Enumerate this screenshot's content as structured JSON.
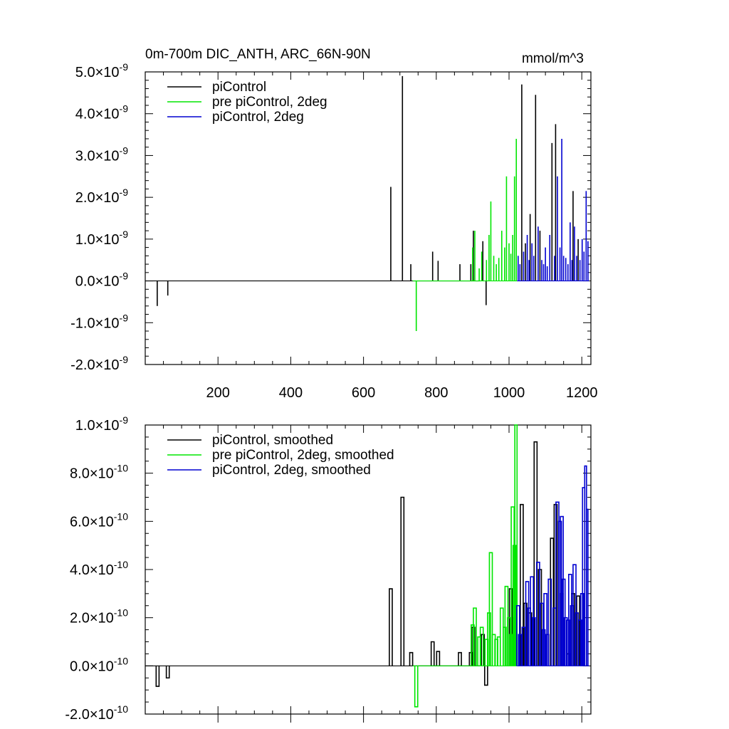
{
  "chart_data": [
    {
      "type": "line",
      "title": "0m-700m DIC_ANTH, ARC_66N-90N",
      "units": "mmol/m^3",
      "xlabel": "",
      "ylabel": "",
      "xlim": [
        0,
        1225
      ],
      "ylim": [
        -2e-09,
        5e-09
      ],
      "x_ticks": [
        200,
        400,
        600,
        800,
        1000,
        1200
      ],
      "x_tick_labels": [
        "200",
        "400",
        "600",
        "800",
        "1000",
        "1200"
      ],
      "y_ticks": [
        -2e-09,
        -1e-09,
        0.0,
        1e-09,
        2e-09,
        3e-09,
        4e-09,
        5e-09
      ],
      "y_tick_labels": [
        {
          "mantissa": "-2.0",
          "times": "×10",
          "exp": "-9"
        },
        {
          "mantissa": "-1.0",
          "times": "×10",
          "exp": "-9"
        },
        {
          "mantissa": "0.0",
          "times": "×10",
          "exp": "-9"
        },
        {
          "mantissa": "1.0",
          "times": "×10",
          "exp": "-9"
        },
        {
          "mantissa": "2.0",
          "times": "×10",
          "exp": "-9"
        },
        {
          "mantissa": "3.0",
          "times": "×10",
          "exp": "-9"
        },
        {
          "mantissa": "4.0",
          "times": "×10",
          "exp": "-9"
        },
        {
          "mantissa": "5.0",
          "times": "×10",
          "exp": "-9"
        }
      ],
      "grid": false,
      "legend_position": "top-left",
      "series": [
        {
          "name": "piControl",
          "color": "#000000",
          "spikes": [
            [
              33,
              -6e-10
            ],
            [
              62,
              -3.5e-10
            ],
            [
              675,
              2.25e-09
            ],
            [
              707,
              4.9e-09
            ],
            [
              730,
              4e-10
            ],
            [
              790,
              7e-10
            ],
            [
              805,
              4.8e-10
            ],
            [
              865,
              4e-10
            ],
            [
              895,
              4e-10
            ],
            [
              902,
              1.2e-09
            ],
            [
              928,
              9.5e-10
            ],
            [
              937,
              -5.8e-10
            ],
            [
              1035,
              4.7e-09
            ],
            [
              1045,
              9e-10
            ],
            [
              1058,
              1.6e-09
            ],
            [
              1073,
              4.45e-09
            ],
            [
              1085,
              1.2e-09
            ],
            [
              1118,
              3.3e-09
            ],
            [
              1128,
              3.75e-09
            ],
            [
              1176,
              2.15e-09
            ],
            [
              1190,
              1e-09
            ]
          ]
        },
        {
          "name": "pre piControl, 2deg",
          "color": "#00e600",
          "spikes": [
            [
              745,
              -1.2e-09
            ],
            [
              900,
              8e-10
            ],
            [
              906,
              1.2e-09
            ],
            [
              918,
              3e-10
            ],
            [
              925,
              7e-10
            ],
            [
              938,
              5e-10
            ],
            [
              945,
              1.1e-09
            ],
            [
              950,
              1.9e-09
            ],
            [
              958,
              6e-10
            ],
            [
              965,
              4e-10
            ],
            [
              972,
              5.5e-10
            ],
            [
              980,
              1.2e-09
            ],
            [
              988,
              8e-10
            ],
            [
              993,
              2.5e-09
            ],
            [
              1000,
              9e-10
            ],
            [
              1005,
              6.5e-10
            ],
            [
              1010,
              1.1e-09
            ],
            [
              1015,
              2.5e-09
            ],
            [
              1020,
              3.4e-09
            ]
          ]
        },
        {
          "name": "piControl, 2deg",
          "color": "#0000d0",
          "spikes": [
            [
              1025,
              6e-10
            ],
            [
              1030,
              4e-10
            ],
            [
              1040,
              7e-10
            ],
            [
              1050,
              1.1e-09
            ],
            [
              1055,
              5e-10
            ],
            [
              1063,
              9e-10
            ],
            [
              1068,
              6e-10
            ],
            [
              1080,
              1.3e-09
            ],
            [
              1090,
              5e-10
            ],
            [
              1095,
              4e-10
            ],
            [
              1100,
              8e-10
            ],
            [
              1105,
              3.5e-10
            ],
            [
              1112,
              1.1e-09
            ],
            [
              1125,
              6e-10
            ],
            [
              1133,
              2.5e-09
            ],
            [
              1140,
              8e-10
            ],
            [
              1145,
              3.4e-09
            ],
            [
              1150,
              6e-10
            ],
            [
              1156,
              5.5e-10
            ],
            [
              1162,
              4e-10
            ],
            [
              1168,
              1.4e-09
            ],
            [
              1173,
              5e-10
            ],
            [
              1180,
              1.3e-09
            ],
            [
              1186,
              6e-10
            ],
            [
              1195,
              5e-10
            ],
            [
              1201,
              1e-09
            ],
            [
              1206,
              7e-10
            ],
            [
              1212,
              2.15e-09
            ],
            [
              1217,
              9.5e-10
            ]
          ]
        }
      ]
    },
    {
      "type": "line",
      "title": "",
      "xlabel": "",
      "ylabel": "",
      "xlim": [
        0,
        1225
      ],
      "ylim": [
        -2e-10,
        1e-09
      ],
      "x_ticks": [
        200,
        400,
        600,
        800,
        1000,
        1200
      ],
      "x_tick_labels": [],
      "y_ticks": [
        -2e-10,
        0.0,
        2e-10,
        4e-10,
        6e-10,
        8e-10,
        1e-09
      ],
      "y_tick_labels": [
        {
          "mantissa": "-2.0",
          "times": "×10",
          "exp": "-10"
        },
        {
          "mantissa": "0.0",
          "times": "×10",
          "exp": "-10"
        },
        {
          "mantissa": "2.0",
          "times": "×10",
          "exp": "-10"
        },
        {
          "mantissa": "4.0",
          "times": "×10",
          "exp": "-10"
        },
        {
          "mantissa": "6.0",
          "times": "×10",
          "exp": "-10"
        },
        {
          "mantissa": "8.0",
          "times": "×10",
          "exp": "-10"
        },
        {
          "mantissa": "1.0",
          "times": "×10",
          "exp": "-9"
        }
      ],
      "grid": false,
      "legend_position": "top-left",
      "series": [
        {
          "name": "piControl, smoothed",
          "color": "#000000",
          "blocks": [
            [
              30,
              38,
              -8.5e-11
            ],
            [
              58,
              66,
              -5e-11
            ],
            [
              671,
              679,
              3.2e-10
            ],
            [
              703,
              711,
              7e-10
            ],
            [
              727,
              735,
              5.5e-11
            ],
            [
              786,
              794,
              1e-10
            ],
            [
              801,
              809,
              6e-11
            ],
            [
              861,
              869,
              5.5e-11
            ],
            [
              891,
              899,
              5.5e-11
            ],
            [
              898,
              906,
              1.6e-10
            ],
            [
              924,
              932,
              1.3e-10
            ],
            [
              933,
              941,
              -8e-11
            ],
            [
              1001,
              1009,
              3.2e-10
            ],
            [
              1011,
              1019,
              2e-10
            ],
            [
              1031,
              1039,
              6.7e-10
            ],
            [
              1041,
              1049,
              2.6e-10
            ],
            [
              1054,
              1062,
              2.2e-10
            ],
            [
              1069,
              1077,
              9.3e-10
            ],
            [
              1081,
              1089,
              4e-10
            ],
            [
              1114,
              1122,
              5.3e-10
            ],
            [
              1124,
              1132,
              6.7e-10
            ],
            [
              1141,
              1149,
              3e-10
            ],
            [
              1160,
              1168,
              5e-11
            ],
            [
              1172,
              1180,
              3e-10
            ],
            [
              1186,
              1194,
              2.9e-10
            ]
          ]
        },
        {
          "name": "pre piControl, 2deg, smoothed",
          "color": "#00e600",
          "blocks": [
            [
              741,
              749,
              -1.7e-10
            ],
            [
              896,
              904,
              1.7e-10
            ],
            [
              902,
              910,
              2.4e-10
            ],
            [
              914,
              922,
              1.2e-10
            ],
            [
              921,
              929,
              1.6e-10
            ],
            [
              934,
              942,
              1.1e-10
            ],
            [
              941,
              949,
              2.2e-10
            ],
            [
              946,
              954,
              4.7e-10
            ],
            [
              954,
              962,
              1.3e-10
            ],
            [
              961,
              969,
              1.1e-10
            ],
            [
              968,
              976,
              1.2e-10
            ],
            [
              976,
              984,
              2.4e-10
            ],
            [
              984,
              992,
              1.6e-10
            ],
            [
              989,
              997,
              3.3e-10
            ],
            [
              996,
              1004,
              2e-10
            ],
            [
              1001,
              1009,
              1.3e-10
            ],
            [
              1006,
              1014,
              6.6e-10
            ],
            [
              1011,
              1019,
              5e-10
            ],
            [
              1016,
              1022,
              1e-09
            ]
          ]
        },
        {
          "name": "piControl, 2deg, smoothed",
          "color": "#0000d0",
          "blocks": [
            [
              1021,
              1029,
              2.5e-10
            ],
            [
              1026,
              1034,
              1.3e-10
            ],
            [
              1036,
              1044,
              1.6e-10
            ],
            [
              1046,
              1054,
              3.5e-10
            ],
            [
              1051,
              1059,
              2.4e-10
            ],
            [
              1059,
              1067,
              3.7e-10
            ],
            [
              1064,
              1072,
              2e-10
            ],
            [
              1076,
              1084,
              4.3e-10
            ],
            [
              1086,
              1094,
              2.6e-10
            ],
            [
              1091,
              1099,
              1.5e-10
            ],
            [
              1096,
              1104,
              3e-10
            ],
            [
              1101,
              1109,
              1.3e-10
            ],
            [
              1108,
              1116,
              3.6e-10
            ],
            [
              1121,
              1129,
              2.4e-10
            ],
            [
              1129,
              1137,
              6.8e-10
            ],
            [
              1136,
              1144,
              6e-10
            ],
            [
              1141,
              1149,
              6.2e-10
            ],
            [
              1146,
              1154,
              3.6e-10
            ],
            [
              1152,
              1160,
              2e-10
            ],
            [
              1158,
              1166,
              1.9e-10
            ],
            [
              1164,
              1172,
              3.8e-10
            ],
            [
              1169,
              1177,
              2.5e-10
            ],
            [
              1176,
              1184,
              4.2e-10
            ],
            [
              1182,
              1190,
              2.2e-10
            ],
            [
              1191,
              1199,
              1.9e-10
            ],
            [
              1197,
              1205,
              3e-10
            ],
            [
              1202,
              1208,
              7.4e-10
            ],
            [
              1208,
              1213,
              8.3e-10
            ],
            [
              1213,
              1217,
              6.5e-10
            ]
          ]
        }
      ]
    }
  ]
}
